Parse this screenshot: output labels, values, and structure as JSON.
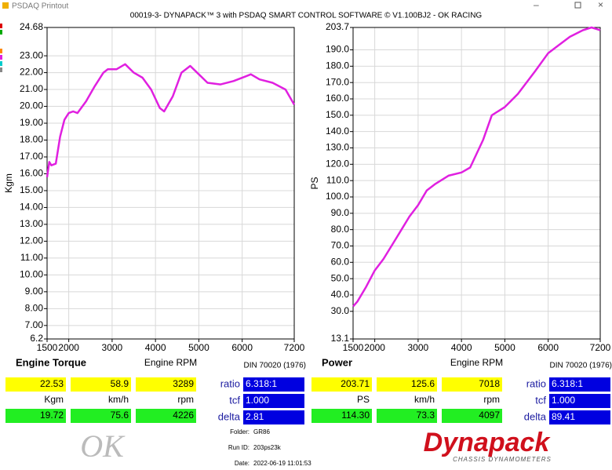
{
  "window_title": "PSDAQ Printout",
  "header": "00019-3- DYNAPACK™ 3 with PSDAQ SMART CONTROL SOFTWARE © V1.100BJ2 - OK RACING",
  "chart_data": [
    {
      "type": "line",
      "title": "Engine Torque",
      "x_label": "Engine RPM",
      "y_label": "Kgm",
      "annotation": "DIN 70020 (1976)",
      "x": [
        1500,
        1550,
        1600,
        1700,
        1800,
        1900,
        2000,
        2100,
        2200,
        2400,
        2600,
        2800,
        2900,
        3100,
        3300,
        3500,
        3700,
        3900,
        4100,
        4200,
        4400,
        4600,
        4800,
        5000,
        5200,
        5500,
        5800,
        6100,
        6200,
        6400,
        6700,
        7000,
        7200
      ],
      "series": [
        {
          "name": "Kgm",
          "color": "#e020e0",
          "values": [
            15.8,
            16.7,
            16.5,
            16.6,
            18.2,
            19.2,
            19.6,
            19.7,
            19.6,
            20.3,
            21.2,
            22.0,
            22.2,
            22.2,
            22.5,
            22.0,
            21.7,
            21.0,
            19.9,
            19.7,
            20.6,
            22.0,
            22.4,
            21.9,
            21.4,
            21.3,
            21.5,
            21.8,
            21.9,
            21.6,
            21.4,
            21.0,
            20.1
          ]
        }
      ],
      "xlim": [
        1500,
        7200
      ],
      "xticks": [
        1500,
        2000,
        3000,
        4000,
        5000,
        6000,
        7200
      ],
      "ylim": [
        6.2,
        24.68
      ],
      "yticks": [
        6.2,
        {
          "value": 7,
          "label": "7.00"
        },
        {
          "value": 8,
          "label": "8.00"
        },
        {
          "value": 9,
          "label": "9.00"
        },
        {
          "value": 10,
          "label": "10.00"
        },
        {
          "value": 11,
          "label": "11.00"
        },
        {
          "value": 12,
          "label": "12.00"
        },
        {
          "value": 13,
          "label": "13.00"
        },
        {
          "value": 14,
          "label": "14.00"
        },
        {
          "value": 15,
          "label": "15.00"
        },
        {
          "value": 16,
          "label": "16.00"
        },
        {
          "value": 17,
          "label": "17.00"
        },
        {
          "value": 18,
          "label": "18.00"
        },
        {
          "value": 19,
          "label": "19.00"
        },
        {
          "value": 20,
          "label": "20.00"
        },
        {
          "value": 21,
          "label": "21.00"
        },
        {
          "value": 22,
          "label": "22.00"
        },
        {
          "value": 23,
          "label": "23.00"
        },
        24.68
      ],
      "grid": true
    },
    {
      "type": "line",
      "title": "Power",
      "x_label": "Engine RPM",
      "y_label": "PS",
      "annotation": "DIN 70020 (1976)",
      "x": [
        1500,
        1600,
        1800,
        2000,
        2200,
        2500,
        2800,
        3000,
        3200,
        3400,
        3700,
        4000,
        4200,
        4500,
        4700,
        5000,
        5300,
        5700,
        6000,
        6200,
        6500,
        6800,
        7000,
        7200
      ],
      "series": [
        {
          "name": "PS",
          "color": "#e020e0",
          "values": [
            33,
            36,
            45,
            55,
            62,
            75,
            88,
            95,
            104,
            108,
            113,
            115,
            118,
            135,
            150,
            155,
            163,
            177,
            188,
            192,
            198,
            202,
            203.7,
            202
          ]
        }
      ],
      "xlim": [
        1500,
        7200
      ],
      "xticks": [
        1500,
        2000,
        3000,
        4000,
        5000,
        6000,
        7200
      ],
      "ylim": [
        13.1,
        203.7
      ],
      "yticks": [
        13.1,
        {
          "value": 30,
          "label": "30.0"
        },
        {
          "value": 40,
          "label": "40.0"
        },
        {
          "value": 50,
          "label": "50.0"
        },
        {
          "value": 60,
          "label": "60.0"
        },
        {
          "value": 70,
          "label": "70.0"
        },
        {
          "value": 80,
          "label": "80.0"
        },
        {
          "value": 90,
          "label": "90.0"
        },
        {
          "value": 100,
          "label": "100.0"
        },
        {
          "value": 110,
          "label": "110.0"
        },
        {
          "value": 120,
          "label": "120.0"
        },
        {
          "value": 130,
          "label": "130.0"
        },
        {
          "value": 140,
          "label": "140.0"
        },
        {
          "value": 150,
          "label": "150.0"
        },
        {
          "value": 160,
          "label": "160.0"
        },
        {
          "value": 170,
          "label": "170.0"
        },
        {
          "value": 180,
          "label": "180.0"
        },
        {
          "value": 190,
          "label": "190.0"
        },
        203.7
      ],
      "grid": true
    }
  ],
  "readouts": [
    {
      "rows": [
        [
          "22.53",
          "58.9",
          "3289"
        ],
        [
          "Kgm",
          "km/h",
          "rpm"
        ],
        [
          "19.72",
          "75.6",
          "4226"
        ]
      ],
      "factors": [
        [
          "ratio",
          "6.318:1"
        ],
        [
          "tcf",
          "1.000"
        ],
        [
          "delta",
          "2.81"
        ]
      ]
    },
    {
      "rows": [
        [
          "203.71",
          "125.6",
          "7018"
        ],
        [
          "PS",
          "km/h",
          "rpm"
        ],
        [
          "114.30",
          "73.3",
          "4097"
        ]
      ],
      "factors": [
        [
          "ratio",
          "6.318:1"
        ],
        [
          "tcf",
          "1.000"
        ],
        [
          "delta",
          "89.41"
        ]
      ]
    }
  ],
  "run_info": [
    [
      "Folder:",
      "GR86"
    ],
    [
      "Run ID:",
      "203ps23k"
    ],
    [
      "Date:",
      "2022-06-19 11:01:53"
    ]
  ],
  "logos": {
    "left": "OK",
    "right": "Dynapack",
    "right_sub": "CHASSIS DYNAMOMETERS"
  }
}
